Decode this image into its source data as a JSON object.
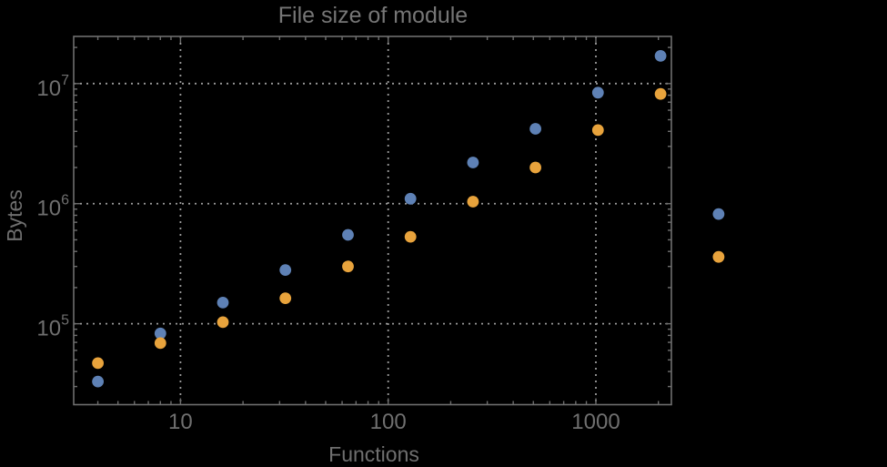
{
  "colors": {
    "background": "#000000",
    "frame": "#6e6e6e",
    "grid": "#9a9a9a",
    "text": "#6f6f6f",
    "title_text": "#767676",
    "series_blue": "#5e81b5",
    "series_orange": "#e8a33c"
  },
  "chart_data": {
    "type": "scatter",
    "title": "File size of module",
    "xlabel": "Functions",
    "ylabel": "Bytes",
    "x_scale": "log",
    "y_scale": "log",
    "x_range": [
      3.06,
      2310
    ],
    "y_range": [
      21200,
      24700000
    ],
    "grid": true,
    "legend": "none",
    "x_ticks": [
      {
        "value": 10,
        "label": "10"
      },
      {
        "value": 100,
        "label": "100"
      },
      {
        "value": 1000,
        "label": "1000"
      }
    ],
    "y_ticks": [
      {
        "value": 100000,
        "base": "10",
        "exponent": "5"
      },
      {
        "value": 1000000,
        "base": "10",
        "exponent": "6"
      },
      {
        "value": 10000000,
        "base": "10",
        "exponent": "7"
      }
    ],
    "x_minor_ticks": [
      4,
      5,
      6,
      7,
      8,
      9,
      20,
      30,
      40,
      50,
      60,
      70,
      80,
      90,
      200,
      300,
      400,
      500,
      600,
      700,
      800,
      900,
      2000
    ],
    "y_minor_ticks": [
      30000,
      40000,
      50000,
      60000,
      70000,
      80000,
      90000,
      200000,
      300000,
      400000,
      500000,
      600000,
      700000,
      800000,
      900000,
      2000000,
      3000000,
      4000000,
      5000000,
      6000000,
      7000000,
      8000000,
      9000000,
      20000000
    ],
    "marker_radius": 6.4,
    "series": [
      {
        "name": "blue",
        "color": "#5e81b5",
        "points": [
          [
            4,
            33000
          ],
          [
            8,
            83000
          ],
          [
            16,
            150000
          ],
          [
            32,
            280000
          ],
          [
            64,
            550000
          ],
          [
            128,
            1100000
          ],
          [
            256,
            2200000
          ],
          [
            512,
            4200000
          ],
          [
            1024,
            8400000
          ],
          [
            2048,
            17000000
          ],
          [
            3900,
            820000
          ]
        ]
      },
      {
        "name": "orange",
        "color": "#e8a33c",
        "points": [
          [
            4,
            47000
          ],
          [
            8,
            69000
          ],
          [
            16,
            103000
          ],
          [
            32,
            163000
          ],
          [
            64,
            300000
          ],
          [
            128,
            530000
          ],
          [
            256,
            1040000
          ],
          [
            512,
            2000000
          ],
          [
            1024,
            4100000
          ],
          [
            2048,
            8200000
          ],
          [
            3900,
            360000
          ]
        ]
      }
    ]
  }
}
